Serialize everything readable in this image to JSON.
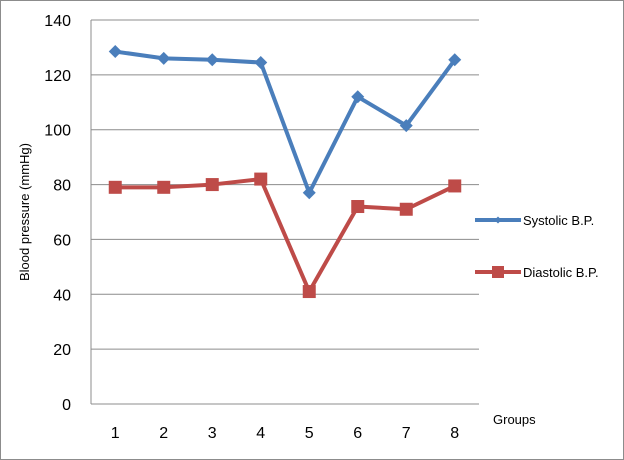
{
  "chart_data": {
    "type": "line",
    "title": "",
    "xlabel": "Groups",
    "ylabel": "Blood pressure (mmHg)",
    "categories": [
      "1",
      "2",
      "3",
      "4",
      "5",
      "6",
      "7",
      "8"
    ],
    "ylim": [
      0,
      140
    ],
    "yticks": [
      0,
      20,
      40,
      60,
      80,
      100,
      120,
      140
    ],
    "grid": "horizontal",
    "legend_position": "right",
    "series": [
      {
        "name": "Systolic B.P.",
        "color": "#4a7ebb",
        "marker": "diamond",
        "values": [
          128.5,
          126,
          125.5,
          124.5,
          77,
          112,
          101.5,
          125.5
        ]
      },
      {
        "name": "Diastolic B.P.",
        "color": "#be4b48",
        "marker": "square",
        "values": [
          79,
          79,
          80,
          82,
          41,
          72,
          71,
          79.5
        ]
      }
    ]
  }
}
